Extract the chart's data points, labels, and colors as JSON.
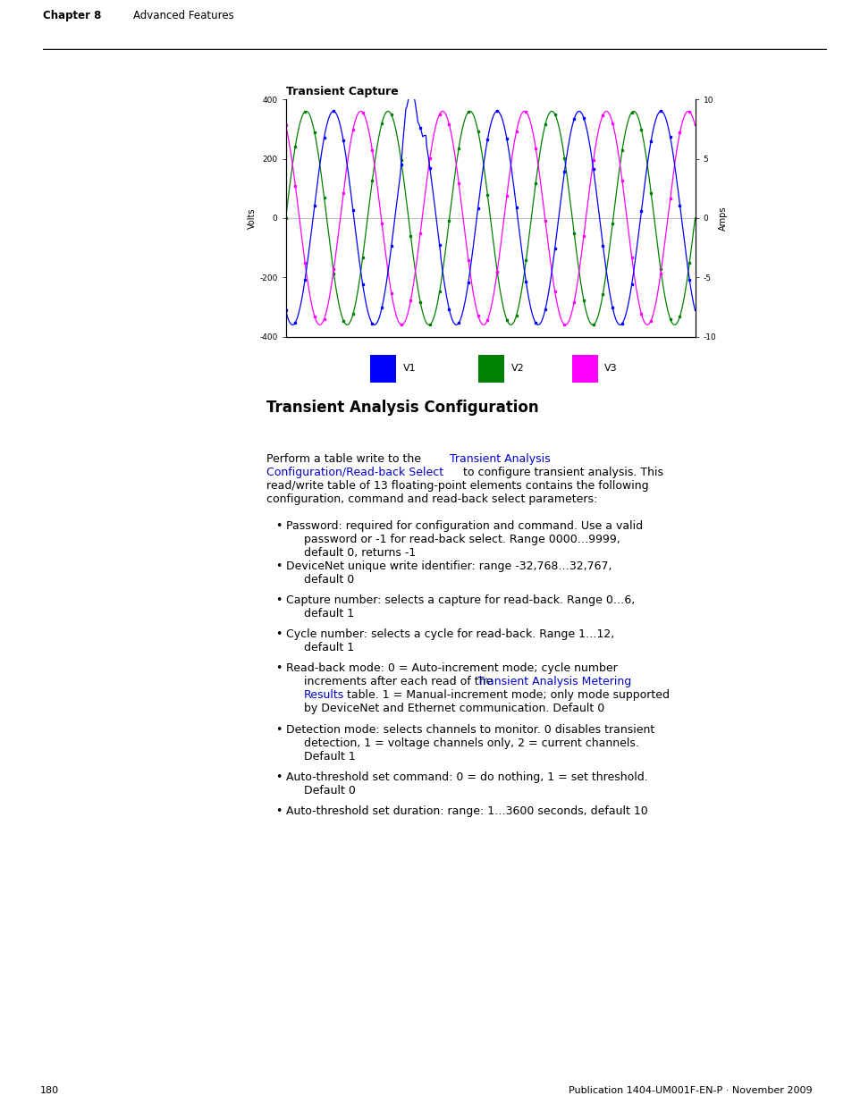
{
  "page_title_bold": "Chapter 8",
  "page_title_normal": "Advanced Features",
  "chart_title": "Transient Capture",
  "left_ylabel": "Volts",
  "right_ylabel": "Amps",
  "ylim_left": [
    -400,
    400
  ],
  "ylim_right": [
    -10,
    10
  ],
  "yticks_left": [
    -400,
    -200,
    0,
    200,
    400
  ],
  "yticks_right": [
    -10,
    -5,
    0,
    5,
    10
  ],
  "v1_color": "#0000FF",
  "v2_color": "#008000",
  "v3_color": "#FF00FF",
  "legend_labels": [
    "V1",
    "V2",
    "V3"
  ],
  "section_title": "Transient Analysis Configuration",
  "page_number": "180",
  "publication": "Publication 1404-UM001F-EN-P · November 2009",
  "background_color": "#FFFFFF",
  "text_color": "#000000",
  "link_color": "#0000CC",
  "header_line_color": "#000000",
  "grid_color": "#C0C0C0",
  "num_cycles": 5,
  "amp_v": 360,
  "phase_v1_deg": -120,
  "phase_v2_deg": 0,
  "phase_v3_deg": 120
}
